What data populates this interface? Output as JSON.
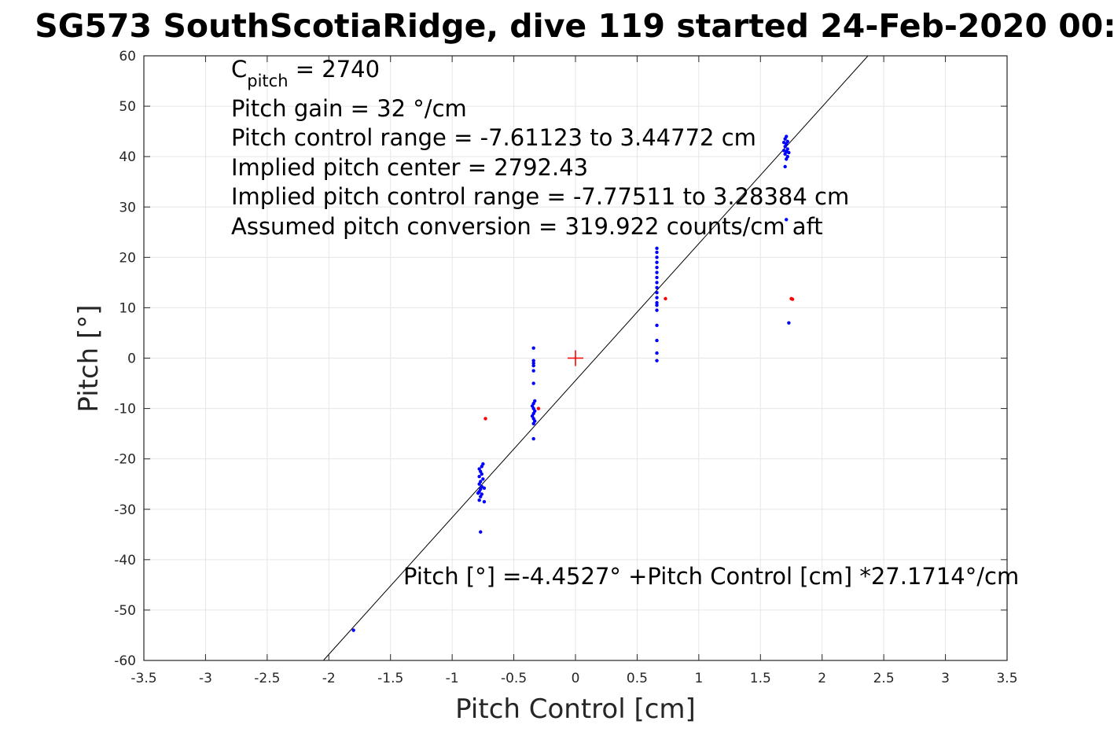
{
  "chart_data": {
    "type": "scatter",
    "title": "SG573 SouthScotiaRidge, dive 119 started 24-Feb-2020 00:",
    "xlabel": "Pitch Control [cm]",
    "ylabel": "Pitch [°]",
    "xlim": [
      -3.5,
      3.5
    ],
    "ylim": [
      -60,
      60
    ],
    "xticks": [
      -3.5,
      -3,
      -2.5,
      -2,
      -1.5,
      -1,
      -0.5,
      0,
      0.5,
      1,
      1.5,
      2,
      2.5,
      3,
      3.5
    ],
    "xtick_labels": [
      "-3.5",
      "-3",
      "-2.5",
      "-2",
      "-1.5",
      "-1",
      "-0.5",
      "0",
      "0.5",
      "1",
      "1.5",
      "2",
      "2.5",
      "3",
      "3.5"
    ],
    "yticks": [
      -60,
      -50,
      -40,
      -30,
      -20,
      -10,
      0,
      10,
      20,
      30,
      40,
      50,
      60
    ],
    "ytick_labels": [
      "-60",
      "-50",
      "-40",
      "-30",
      "-20",
      "-10",
      "0",
      "10",
      "20",
      "30",
      "40",
      "50",
      "60"
    ],
    "grid": true,
    "fit_line": {
      "intercept": -4.4527,
      "slope": 27.1714
    },
    "center_marker": {
      "x": 0,
      "y": 0,
      "color": "#ff0000"
    },
    "series": [
      {
        "color": "#0000ff",
        "points": [
          [
            -1.8,
            -54.0
          ],
          [
            -0.77,
            -34.5
          ],
          [
            -0.78,
            -28.2
          ],
          [
            -0.77,
            -27.5
          ],
          [
            -0.76,
            -27.0
          ],
          [
            -0.78,
            -26.5
          ],
          [
            -0.77,
            -26.0
          ],
          [
            -0.76,
            -25.5
          ],
          [
            -0.78,
            -25.0
          ],
          [
            -0.77,
            -24.5
          ],
          [
            -0.75,
            -24.0
          ],
          [
            -0.78,
            -23.5
          ],
          [
            -0.76,
            -23.0
          ],
          [
            -0.77,
            -22.5
          ],
          [
            -0.78,
            -22.0
          ],
          [
            -0.76,
            -21.5
          ],
          [
            -0.75,
            -21.0
          ],
          [
            -0.74,
            -25.8
          ],
          [
            -0.79,
            -26.8
          ],
          [
            -0.74,
            -28.5
          ],
          [
            -0.34,
            -16.0
          ],
          [
            -0.34,
            -13.0
          ],
          [
            -0.33,
            -12.5
          ],
          [
            -0.34,
            -12.0
          ],
          [
            -0.35,
            -11.5
          ],
          [
            -0.34,
            -11.0
          ],
          [
            -0.33,
            -10.5
          ],
          [
            -0.34,
            -10.0
          ],
          [
            -0.35,
            -9.5
          ],
          [
            -0.34,
            -9.0
          ],
          [
            -0.33,
            -8.5
          ],
          [
            -0.34,
            -5.0
          ],
          [
            -0.34,
            -2.5
          ],
          [
            -0.34,
            -1.5
          ],
          [
            -0.34,
            -1.0
          ],
          [
            -0.34,
            -0.5
          ],
          [
            -0.34,
            2.0
          ],
          [
            0.66,
            -0.5
          ],
          [
            0.66,
            1.0
          ],
          [
            0.66,
            3.5
          ],
          [
            0.66,
            6.5
          ],
          [
            0.66,
            9.5
          ],
          [
            0.66,
            10.5
          ],
          [
            0.66,
            11.0
          ],
          [
            0.66,
            12.0
          ],
          [
            0.66,
            13.0
          ],
          [
            0.66,
            14.0
          ],
          [
            0.66,
            15.0
          ],
          [
            0.66,
            16.0
          ],
          [
            0.66,
            17.0
          ],
          [
            0.66,
            18.0
          ],
          [
            0.66,
            19.0
          ],
          [
            0.66,
            20.0
          ],
          [
            0.66,
            21.0
          ],
          [
            0.66,
            21.8
          ],
          [
            1.73,
            7.0
          ],
          [
            1.71,
            27.5
          ],
          [
            1.7,
            38.0
          ],
          [
            1.71,
            39.5
          ],
          [
            1.72,
            40.0
          ],
          [
            1.7,
            40.5
          ],
          [
            1.71,
            41.0
          ],
          [
            1.72,
            41.5
          ],
          [
            1.7,
            42.0
          ],
          [
            1.71,
            42.5
          ],
          [
            1.72,
            43.0
          ],
          [
            1.7,
            43.5
          ],
          [
            1.71,
            44.0
          ],
          [
            1.69,
            41.2
          ],
          [
            1.73,
            40.8
          ],
          [
            1.69,
            42.8
          ]
        ]
      },
      {
        "color": "#ff0000",
        "points": [
          [
            -0.73,
            -12.0
          ],
          [
            -0.3,
            -10.0
          ],
          [
            0.73,
            11.8
          ],
          [
            1.75,
            11.8
          ],
          [
            1.76,
            11.7
          ]
        ]
      }
    ],
    "annotations": {
      "cpitch_main": "C",
      "cpitch_sub": "pitch",
      "cpitch_value": " = 2740",
      "pitch_gain": "Pitch gain = 32 °/cm",
      "pitch_control_range": "Pitch control range = -7.61123 to 3.44772 cm",
      "implied_pitch_center": "Implied pitch center = 2792.43",
      "implied_pitch_control_range": "Implied pitch control range = -7.77511 to 3.28384 cm",
      "assumed_pitch_conversion": "Assumed pitch conversion = 319.922 counts/cm aft",
      "fit_equation": "Pitch [°] =-4.4527° +Pitch Control [cm] *27.1714°/cm"
    }
  }
}
